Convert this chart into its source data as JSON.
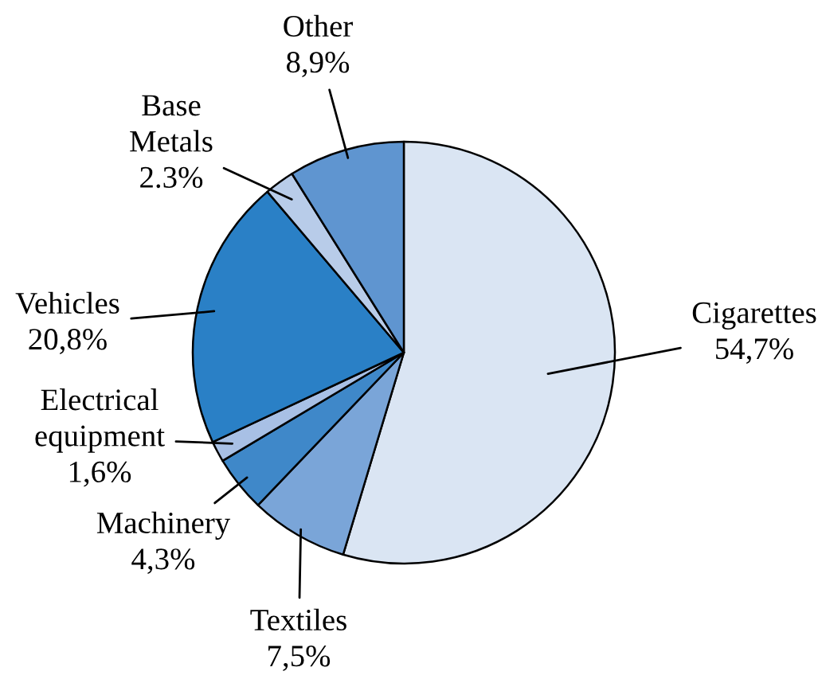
{
  "chart_data": {
    "type": "pie",
    "categories": [
      "Cigarettes",
      "Textiles",
      "Machinery",
      "Electrical equipment",
      "Vehicles",
      "Base Metals",
      "Other"
    ],
    "values": [
      54.7,
      7.5,
      4.3,
      1.6,
      20.8,
      2.3,
      8.9
    ],
    "colors": [
      "#dae5f3",
      "#7aa5d8",
      "#3f88c9",
      "#a8c0e5",
      "#2a80c6",
      "#b8cce9",
      "#5f95d0"
    ],
    "value_labels": [
      "54,7%",
      "7,5%",
      "4,3%",
      "1,6%",
      "20,8%",
      "2.3%",
      "8,9%"
    ]
  }
}
